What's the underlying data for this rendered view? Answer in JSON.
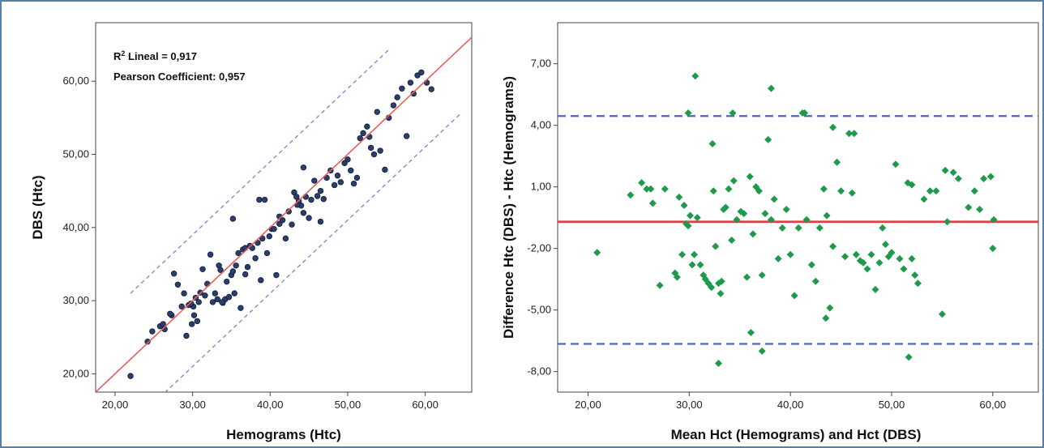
{
  "chart_data": [
    {
      "type": "scatter",
      "xlabel": "Hemograms (Htc)",
      "ylabel": "DBS (Htc)",
      "xlim": [
        17.5,
        66
      ],
      "ylim": [
        17.5,
        68
      ],
      "xticks": [
        "20,00",
        "30,00",
        "40,00",
        "50,00",
        "60,00"
      ],
      "xtick_values": [
        20,
        30,
        40,
        50,
        60
      ],
      "yticks": [
        "20,00",
        "30,00",
        "40,00",
        "50,00",
        "60,00"
      ],
      "ytick_values": [
        20,
        30,
        40,
        50,
        60
      ],
      "annotations": {
        "r2_prefix": "R",
        "r2_sup": "2",
        "r2_text": " Lineal = 0,917",
        "pearson": "Pearson Coefficient: 0,957"
      },
      "fit_line": {
        "slope": 1.0,
        "intercept": 0.0,
        "color": "#e8605a"
      },
      "confidence_bands": {
        "offset": 9.0,
        "color": "#8080d8"
      },
      "point_color": "#2a3f6e",
      "x": [
        22,
        24.2,
        24.8,
        25.8,
        26.2,
        26.4,
        27.3,
        27.6,
        28.1,
        28.6,
        28.9,
        29.2,
        29.5,
        29.9,
        30.1,
        30.2,
        30.4,
        30.6,
        30.8,
        31.0,
        31.3,
        31.6,
        31.9,
        32.3,
        32.6,
        32.9,
        33.2,
        33.4,
        33.6,
        33.9,
        34.2,
        34.4,
        34.7,
        35.0,
        35.2,
        35.4,
        35.6,
        35.9,
        36.2,
        36.5,
        36.8,
        37.1,
        37.4,
        37.7,
        38.1,
        38.4,
        38.8,
        39.0,
        39.3,
        39.6,
        39.9,
        40.2,
        40.5,
        40.8,
        41.2,
        41.6,
        42.0,
        42.4,
        42.8,
        43.1,
        43.4,
        43.7,
        44.0,
        44.3,
        44.6,
        45.0,
        45.3,
        45.7,
        46.1,
        46.5,
        46.9,
        47.3,
        47.8,
        48.3,
        48.7,
        49.1,
        49.6,
        50.0,
        50.4,
        50.8,
        51.2,
        51.6,
        52.0,
        52.5,
        53.0,
        53.4,
        53.8,
        54.2,
        54.8,
        55.3,
        55.9,
        56.4,
        57.0,
        57.6,
        58.1,
        58.5,
        59.0,
        59.5,
        60.2,
        60.8,
        44.3,
        46.5,
        38.6,
        33.8,
        36.8,
        41.2,
        27.1,
        29.8,
        52.8,
        43.5,
        35.2
      ],
      "y": [
        19.7,
        24.4,
        25.8,
        26.5,
        26.8,
        26.1,
        28.0,
        33.7,
        32.2,
        29.2,
        31.0,
        25.2,
        29.4,
        26.8,
        29.2,
        28.0,
        30.4,
        27.2,
        29.8,
        31.1,
        34.3,
        30.7,
        32.3,
        36.3,
        29.8,
        31.0,
        30.2,
        34.8,
        34.2,
        29.7,
        30.2,
        32.6,
        30.5,
        33.5,
        34.0,
        31.0,
        34.8,
        36.5,
        29.0,
        37.0,
        33.6,
        34.6,
        37.5,
        37.2,
        35.8,
        37.9,
        32.8,
        38.5,
        43.8,
        36.5,
        38.8,
        39.8,
        39.8,
        33.5,
        40.5,
        41.0,
        38.5,
        42.2,
        40.4,
        44.8,
        44.2,
        43.6,
        43.0,
        42.0,
        44.2,
        41.3,
        43.8,
        46.4,
        44.3,
        45.0,
        43.9,
        46.8,
        47.8,
        45.8,
        47.1,
        46.2,
        48.8,
        49.3,
        47.8,
        46.0,
        46.8,
        52.2,
        52.9,
        53.8,
        50.9,
        50.0,
        55.8,
        50.5,
        47.9,
        55.0,
        56.7,
        57.8,
        59.0,
        52.5,
        59.8,
        58.3,
        60.8,
        61.2,
        59.8,
        58.9,
        48.2,
        40.8,
        43.8,
        29.8,
        37.2,
        41.5,
        28.2,
        29.6,
        52.4,
        43.1,
        41.2
      ]
    },
    {
      "type": "scatter",
      "xlabel": "Mean Hct (Hemograms) and Hct (DBS)",
      "ylabel": "Difference Htc (DBS) - Htc (Hemograms)",
      "xlim": [
        17.0,
        64.5
      ],
      "ylim": [
        -9.0,
        9.0
      ],
      "xticks": [
        "20,00",
        "30,00",
        "40,00",
        "50,00",
        "60,00"
      ],
      "xtick_values": [
        20,
        30,
        40,
        50,
        60
      ],
      "yticks": [
        "7,00",
        "4,00",
        "1,00",
        "-2,00",
        "-5,00",
        "-8,00"
      ],
      "ytick_values": [
        7,
        4,
        1,
        -2,
        -5,
        -8
      ],
      "mean_line": {
        "value": -0.7,
        "color": "#e04040"
      },
      "limits_of_agreement": {
        "upper": 4.45,
        "lower": -6.65,
        "color": "#4a68c8"
      },
      "point_color": "#1f9a4a",
      "x": [
        20.9,
        24.2,
        25.3,
        25.8,
        26.2,
        26.4,
        27.1,
        27.6,
        28.6,
        29.0,
        29.3,
        29.5,
        29.7,
        29.9,
        30.1,
        30.3,
        30.5,
        30.8,
        31.1,
        31.4,
        31.6,
        31.9,
        32.2,
        32.4,
        32.6,
        32.9,
        33.2,
        33.4,
        33.6,
        33.9,
        34.2,
        34.4,
        34.7,
        35.1,
        35.4,
        35.7,
        36.0,
        36.3,
        36.6,
        36.9,
        37.2,
        37.5,
        37.8,
        38.1,
        38.4,
        38.8,
        39.2,
        39.6,
        40.0,
        40.4,
        40.8,
        41.2,
        41.6,
        42.1,
        42.5,
        42.9,
        43.3,
        43.6,
        43.9,
        44.2,
        44.6,
        45.0,
        45.4,
        45.8,
        46.1,
        46.5,
        46.9,
        47.2,
        47.6,
        48.0,
        48.4,
        48.8,
        49.1,
        49.4,
        49.7,
        50.0,
        50.4,
        50.8,
        51.2,
        51.6,
        52.0,
        52.3,
        52.6,
        53.2,
        53.8,
        54.4,
        55.0,
        55.5,
        56.1,
        56.6,
        57.6,
        58.2,
        58.7,
        59.1,
        59.8,
        60.0,
        60.1,
        30.6,
        32.9,
        38.1,
        46.3,
        51.7,
        55.3,
        37.2,
        43.5,
        41.4,
        34.3,
        29.9,
        32.3,
        52.0,
        28.8,
        33.1,
        36.1,
        44.2
      ],
      "y": [
        -2.2,
        0.6,
        1.2,
        0.9,
        0.9,
        0.2,
        -3.8,
        0.9,
        -3.2,
        0.5,
        -2.3,
        0.1,
        -0.8,
        -0.9,
        -0.4,
        -2.8,
        -2.3,
        -0.5,
        -2.8,
        -3.3,
        -3.5,
        -3.7,
        -3.9,
        0.8,
        -1.9,
        -3.7,
        -3.6,
        -0.1,
        0.0,
        0.9,
        -1.6,
        1.3,
        -0.6,
        -0.2,
        -0.3,
        -3.4,
        1.5,
        -1.3,
        1.0,
        0.8,
        -3.3,
        -0.3,
        3.3,
        -0.6,
        0.4,
        -2.5,
        -1.0,
        -0.1,
        -2.3,
        -4.3,
        -1.0,
        4.6,
        -0.6,
        -2.8,
        -3.6,
        -1.0,
        0.9,
        -0.4,
        -4.9,
        -1.9,
        2.2,
        0.8,
        -2.4,
        3.6,
        0.7,
        -2.3,
        -2.6,
        -2.7,
        -3.0,
        -2.3,
        -4.0,
        -2.7,
        -1.0,
        -1.8,
        -2.4,
        -2.2,
        2.1,
        -2.5,
        -3.0,
        1.2,
        -2.5,
        -3.3,
        -3.7,
        0.4,
        0.8,
        0.8,
        -5.2,
        -0.7,
        1.7,
        1.4,
        0.0,
        0.8,
        -0.1,
        1.4,
        1.5,
        -2.0,
        -0.6,
        6.4,
        -7.6,
        5.8,
        3.6,
        -7.3,
        1.8,
        -7.0,
        -5.4,
        4.6,
        4.6,
        4.6,
        3.1,
        1.1,
        -3.4,
        -4.2,
        -6.1,
        3.9
      ]
    }
  ]
}
